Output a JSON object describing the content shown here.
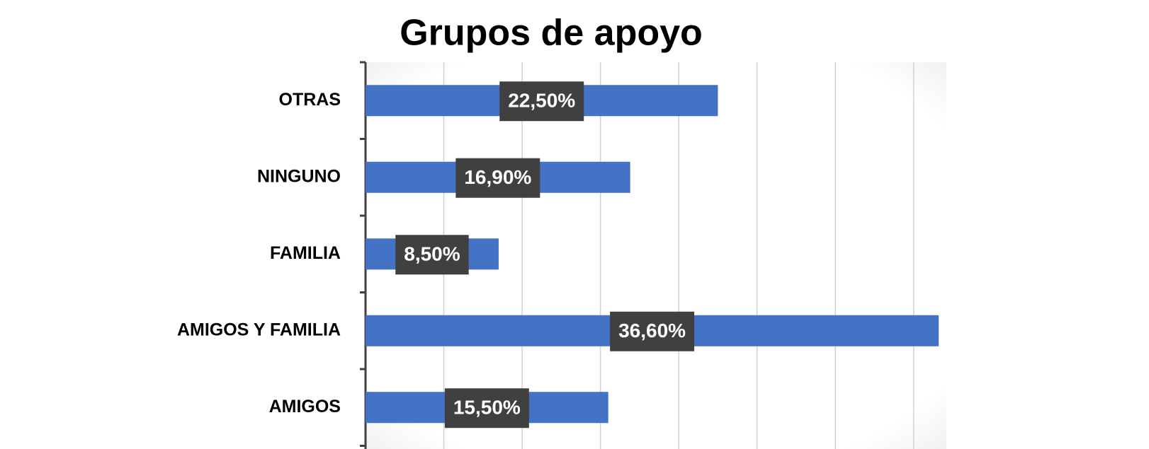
{
  "chart_data": {
    "type": "bar",
    "orientation": "horizontal",
    "title": "Grupos de apoyo",
    "categories": [
      "OTRAS",
      "NINGUNO",
      "FAMILIA",
      "AMIGOS Y FAMILIA",
      "AMIGOS"
    ],
    "values": [
      22.5,
      16.9,
      8.5,
      36.6,
      15.5
    ],
    "value_labels": [
      "22,50%",
      "16,90%",
      "8,50%",
      "36,60%",
      "15,50%"
    ],
    "color": "#4472c4",
    "xlim": [
      0,
      37
    ],
    "xticks": [
      0,
      5,
      10,
      15,
      20,
      25,
      30,
      35
    ],
    "grid": true
  }
}
